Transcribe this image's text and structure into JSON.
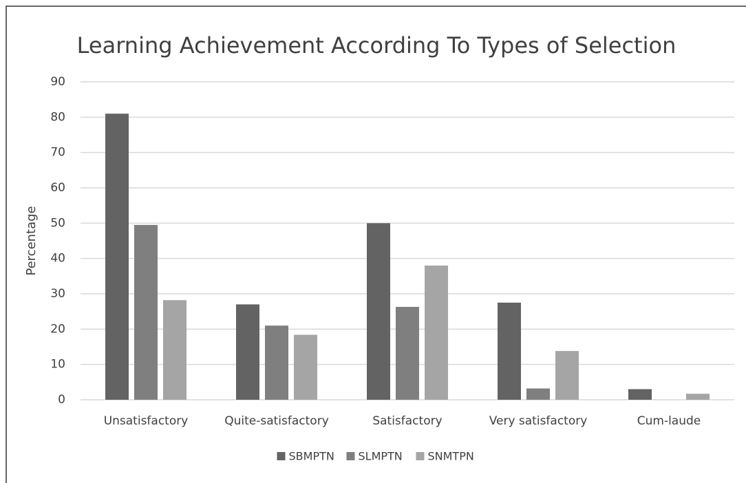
{
  "chart_data": {
    "type": "bar",
    "title": "Learning Achievement According To Types of Selection",
    "y_label": "Percentage",
    "categories": [
      "Unsatisfactory",
      "Quite-satisfactory",
      "Satisfactory",
      "Very satisfactory",
      "Cum-laude"
    ],
    "series": [
      {
        "name": "SBMPTN",
        "color": "#636363",
        "values": [
          81,
          27,
          50,
          27.5,
          3
        ]
      },
      {
        "name": "SLMPTN",
        "color": "#7f7f7f",
        "values": [
          49.5,
          21,
          26.3,
          3.2,
          0
        ]
      },
      {
        "name": "SNMTPN",
        "color": "#a5a5a5",
        "values": [
          28.2,
          18.4,
          38,
          13.8,
          1.7
        ]
      }
    ],
    "ylim": [
      0,
      90
    ],
    "yticks": [
      0,
      10,
      20,
      30,
      40,
      50,
      60,
      70,
      80,
      90
    ],
    "grid": true,
    "legend": "bottom"
  }
}
